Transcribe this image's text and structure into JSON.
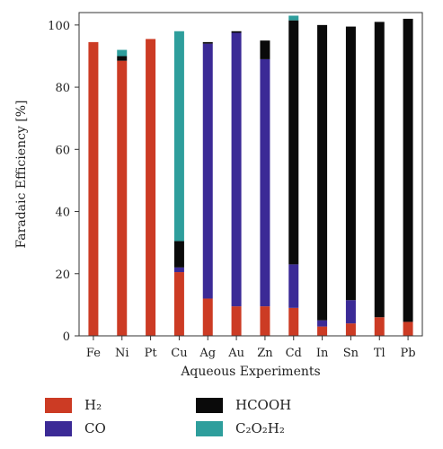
{
  "chart_data": {
    "type": "bar",
    "stacked": true,
    "categories": [
      "Fe",
      "Ni",
      "Pt",
      "Cu",
      "Ag",
      "Au",
      "Zn",
      "Cd",
      "In",
      "Sn",
      "Tl",
      "Pb"
    ],
    "series": [
      {
        "name": "H₂",
        "color": "#cc3b24",
        "values": [
          94.5,
          88.5,
          95.5,
          20.5,
          12.0,
          9.5,
          9.5,
          9.0,
          3.0,
          4.0,
          6.0,
          4.5
        ]
      },
      {
        "name": "CO",
        "color": "#3b2a96",
        "values": [
          0,
          0,
          0,
          1.5,
          82.0,
          88.0,
          79.5,
          14.0,
          2.0,
          7.5,
          0,
          0
        ]
      },
      {
        "name": "HCOOH",
        "color": "#0a0a0a",
        "values": [
          0,
          1.5,
          0,
          8.5,
          0.5,
          0.5,
          6.0,
          78.5,
          95.0,
          88.0,
          95.0,
          97.5
        ]
      },
      {
        "name": "C₂O₂H₂",
        "color": "#2e9e9c",
        "values": [
          0,
          2.0,
          0,
          67.5,
          0,
          0,
          0,
          1.5,
          0,
          0,
          0,
          0
        ]
      }
    ],
    "xlabel": "Aqueous Experiments",
    "ylabel": "Faradaic Efficiency [%]",
    "ylim": [
      0,
      104
    ],
    "yticks": [
      0,
      20,
      40,
      60,
      80,
      100
    ],
    "grid": false,
    "legend_position": "bottom"
  }
}
